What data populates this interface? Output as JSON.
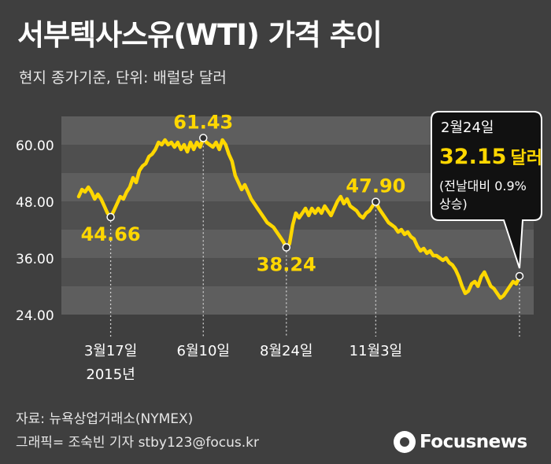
{
  "header": {
    "title": "서부텍사스유(WTI) 가격 추이",
    "subtitle": "현지 종가기준, 단위: 배럴당 달러"
  },
  "colors": {
    "background": "#3f3f3f",
    "line": "#ffd700",
    "band_light": "#5e5e5e",
    "band_dark": "#4f4f4f",
    "callout_bg": "#111111"
  },
  "chart_data": {
    "type": "line",
    "title": "서부텍사스유(WTI) 가격 추이",
    "subtitle": "현지 종가기준, 단위: 배럴당 달러",
    "x_axis": {
      "tick_labels": [
        "3월17일",
        "6월10일",
        "8월24일",
        "11월3일"
      ],
      "year_label": "2015년"
    },
    "y_axis": {
      "ticks": [
        24,
        36,
        48,
        60
      ],
      "tick_labels": [
        "24.00",
        "36.00",
        "48.00",
        "60.00"
      ],
      "range": [
        22,
        70
      ]
    },
    "grid": "horizontal bands",
    "series": [
      {
        "values": [
          49.0,
          50.5,
          50.0,
          51.0,
          50.0,
          48.5,
          49.5,
          48.5,
          47.0,
          45.5,
          44.66,
          46.0,
          47.5,
          49.0,
          48.5,
          50.0,
          51.0,
          53.0,
          52.0,
          54.5,
          55.5,
          56.0,
          57.5,
          58.0,
          59.0,
          60.5,
          60.0,
          61.0,
          60.0,
          60.5,
          59.5,
          60.5,
          59.0,
          60.0,
          58.5,
          60.5,
          59.0,
          60.5,
          59.5,
          61.43,
          60.5,
          60.0,
          59.5,
          60.5,
          59.0,
          61.0,
          60.0,
          58.0,
          56.5,
          53.5,
          52.0,
          50.5,
          51.5,
          50.0,
          48.5,
          47.5,
          46.5,
          45.5,
          44.5,
          43.5,
          43.0,
          42.5,
          41.5,
          40.5,
          39.5,
          38.24,
          39.0,
          43.0,
          45.5,
          44.5,
          45.5,
          46.5,
          45.0,
          46.5,
          45.5,
          46.5,
          45.5,
          47.0,
          46.0,
          45.0,
          46.5,
          48.0,
          49.0,
          47.5,
          48.5,
          47.0,
          46.5,
          46.0,
          45.0,
          44.5,
          45.5,
          46.0,
          47.0,
          47.9,
          46.5,
          45.5,
          44.5,
          43.5,
          43.0,
          42.5,
          41.5,
          42.0,
          41.0,
          41.5,
          40.5,
          40.0,
          38.5,
          37.5,
          38.0,
          37.0,
          37.5,
          36.5,
          36.5,
          36.0,
          35.5,
          36.0,
          35.0,
          34.5,
          33.5,
          32.0,
          30.0,
          28.5,
          29.0,
          30.5,
          31.0,
          30.0,
          32.0,
          33.0,
          31.5,
          30.0,
          29.5,
          28.5,
          27.5,
          28.0,
          29.0,
          30.0,
          31.0,
          30.5,
          32.15
        ]
      }
    ],
    "tick_indices": [
      10,
      39,
      65,
      93
    ],
    "annotations": [
      {
        "label": "44.66",
        "index": 10,
        "value": 44.66,
        "position": "below"
      },
      {
        "label": "61.43",
        "index": 39,
        "value": 61.43,
        "position": "above"
      },
      {
        "label": "38.24",
        "index": 65,
        "value": 38.24,
        "position": "below"
      },
      {
        "label": "47.90",
        "index": 93,
        "value": 47.9,
        "position": "above"
      }
    ],
    "callout": {
      "date": "2월24일",
      "value": "32.15",
      "unit": "달러",
      "change_line1": "(전날대비 0.9%",
      "change_line2": "상승)"
    }
  },
  "footer": {
    "source": "자료: 뉴욕상업거래소(NYMEX)",
    "credit": "그래픽= 조숙빈 기자 stby123@focus.kr",
    "logo": "Focusnews",
    "logo_icon": "focus-circle-icon"
  }
}
